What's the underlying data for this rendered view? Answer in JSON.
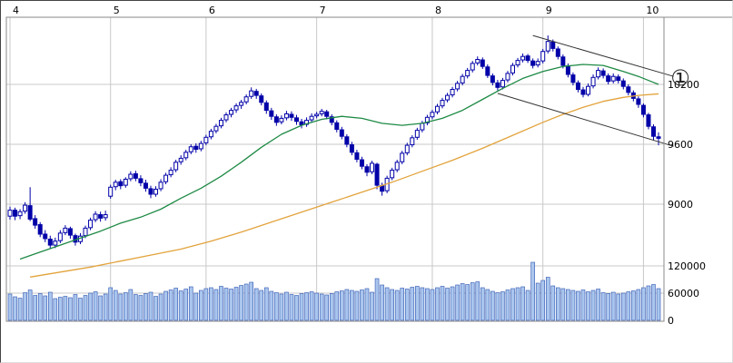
{
  "chart_data": {
    "type": "candlestick",
    "title": "",
    "description": "Daily candlestick stock chart, April through October, with short and long moving averages, descending trend channel and volume bars",
    "x_axis": {
      "unit": "month",
      "tick_labels": [
        "4",
        "5",
        "6",
        "7",
        "8",
        "9",
        "10"
      ],
      "tick_start_indices": [
        0,
        20,
        39,
        61,
        84,
        106,
        126
      ]
    },
    "price_axis": {
      "side": "right",
      "tick_labels": [
        "10200",
        "9600",
        "9000"
      ],
      "tick_values": [
        10200,
        9600,
        9000
      ]
    },
    "volume_axis": {
      "side": "right",
      "tick_labels": [
        "120000",
        "60000",
        "0"
      ],
      "tick_values": [
        120000,
        60000,
        0
      ]
    },
    "candles_ohlcv": [
      [
        8880,
        8975,
        8845,
        8940,
        58000
      ],
      [
        8940,
        8965,
        8840,
        8880,
        52000
      ],
      [
        8885,
        8950,
        8850,
        8925,
        49000
      ],
      [
        8930,
        9020,
        8905,
        8990,
        61000
      ],
      [
        8985,
        9170,
        8830,
        8850,
        67000
      ],
      [
        8855,
        8890,
        8755,
        8790,
        55000
      ],
      [
        8795,
        8820,
        8670,
        8700,
        59000
      ],
      [
        8700,
        8740,
        8620,
        8655,
        54000
      ],
      [
        8650,
        8685,
        8555,
        8590,
        62000
      ],
      [
        8590,
        8665,
        8560,
        8630,
        48000
      ],
      [
        8635,
        8740,
        8610,
        8710,
        51000
      ],
      [
        8715,
        8790,
        8690,
        8760,
        53000
      ],
      [
        8755,
        8775,
        8655,
        8690,
        50000
      ],
      [
        8685,
        8705,
        8585,
        8620,
        57000
      ],
      [
        8625,
        8710,
        8600,
        8680,
        49000
      ],
      [
        8685,
        8785,
        8660,
        8760,
        55000
      ],
      [
        8765,
        8865,
        8740,
        8840,
        60000
      ],
      [
        8845,
        8930,
        8820,
        8900,
        63000
      ],
      [
        8895,
        8925,
        8825,
        8860,
        54000
      ],
      [
        8865,
        8935,
        8835,
        8895,
        58000
      ],
      [
        9080,
        9195,
        9055,
        9170,
        72000
      ],
      [
        9175,
        9245,
        9140,
        9220,
        66000
      ],
      [
        9225,
        9250,
        9150,
        9185,
        58000
      ],
      [
        9190,
        9270,
        9165,
        9250,
        61000
      ],
      [
        9255,
        9330,
        9230,
        9300,
        68000
      ],
      [
        9305,
        9335,
        9230,
        9260,
        57000
      ],
      [
        9255,
        9290,
        9180,
        9215,
        55000
      ],
      [
        9210,
        9245,
        9125,
        9160,
        59000
      ],
      [
        9155,
        9185,
        9060,
        9100,
        62000
      ],
      [
        9100,
        9180,
        9075,
        9150,
        53000
      ],
      [
        9155,
        9250,
        9130,
        9220,
        58000
      ],
      [
        9225,
        9315,
        9200,
        9290,
        64000
      ],
      [
        9295,
        9370,
        9270,
        9340,
        67000
      ],
      [
        9345,
        9445,
        9320,
        9420,
        71000
      ],
      [
        9425,
        9490,
        9395,
        9460,
        65000
      ],
      [
        9465,
        9545,
        9440,
        9520,
        69000
      ],
      [
        9525,
        9600,
        9500,
        9575,
        74000
      ],
      [
        9580,
        9610,
        9515,
        9550,
        60000
      ],
      [
        9555,
        9635,
        9530,
        9608,
        66000
      ],
      [
        9615,
        9695,
        9590,
        9670,
        70000
      ],
      [
        9675,
        9755,
        9650,
        9730,
        72000
      ],
      [
        9735,
        9805,
        9710,
        9780,
        68000
      ],
      [
        9785,
        9865,
        9760,
        9840,
        75000
      ],
      [
        9845,
        9920,
        9820,
        9895,
        71000
      ],
      [
        9900,
        9965,
        9870,
        9940,
        69000
      ],
      [
        9945,
        10010,
        9915,
        9985,
        73000
      ],
      [
        9990,
        10045,
        9955,
        10020,
        77000
      ],
      [
        10025,
        10100,
        10000,
        10075,
        80000
      ],
      [
        10080,
        10170,
        10055,
        10135,
        84000
      ],
      [
        10130,
        10155,
        10055,
        10090,
        70000
      ],
      [
        10085,
        10110,
        9990,
        10020,
        66000
      ],
      [
        10015,
        10040,
        9905,
        9940,
        72000
      ],
      [
        9935,
        9965,
        9845,
        9880,
        64000
      ],
      [
        9875,
        9900,
        9785,
        9820,
        61000
      ],
      [
        9825,
        9890,
        9800,
        9860,
        58000
      ],
      [
        9865,
        9935,
        9840,
        9905,
        62000
      ],
      [
        9900,
        9930,
        9835,
        9870,
        57000
      ],
      [
        9865,
        9895,
        9795,
        9830,
        55000
      ],
      [
        9825,
        9855,
        9760,
        9795,
        59000
      ],
      [
        9800,
        9870,
        9775,
        9840,
        61000
      ],
      [
        9845,
        9910,
        9820,
        9880,
        63000
      ],
      [
        9885,
        9925,
        9860,
        9900,
        60000
      ],
      [
        9905,
        9955,
        9880,
        9930,
        58000
      ],
      [
        9925,
        9945,
        9850,
        9880,
        56000
      ],
      [
        9875,
        9900,
        9790,
        9820,
        59000
      ],
      [
        9815,
        9840,
        9720,
        9750,
        63000
      ],
      [
        9745,
        9775,
        9650,
        9680,
        65000
      ],
      [
        9675,
        9700,
        9570,
        9600,
        68000
      ],
      [
        9595,
        9625,
        9490,
        9520,
        66000
      ],
      [
        9515,
        9545,
        9420,
        9450,
        64000
      ],
      [
        9445,
        9475,
        9350,
        9380,
        67000
      ],
      [
        9375,
        9400,
        9280,
        9320,
        70000
      ],
      [
        9325,
        9435,
        9300,
        9410,
        62000
      ],
      [
        9400,
        9415,
        9150,
        9190,
        92000
      ],
      [
        9185,
        9215,
        9085,
        9130,
        78000
      ],
      [
        9135,
        9285,
        9110,
        9260,
        72000
      ],
      [
        9265,
        9365,
        9240,
        9340,
        68000
      ],
      [
        9345,
        9445,
        9320,
        9420,
        66000
      ],
      [
        9425,
        9535,
        9400,
        9510,
        71000
      ],
      [
        9515,
        9615,
        9490,
        9590,
        69000
      ],
      [
        9595,
        9690,
        9570,
        9665,
        73000
      ],
      [
        9670,
        9765,
        9645,
        9740,
        75000
      ],
      [
        9745,
        9835,
        9720,
        9810,
        72000
      ],
      [
        9815,
        9895,
        9790,
        9870,
        70000
      ],
      [
        9875,
        9945,
        9850,
        9920,
        68000
      ],
      [
        9925,
        10005,
        9900,
        9980,
        72000
      ],
      [
        9985,
        10065,
        9960,
        10040,
        75000
      ],
      [
        10045,
        10115,
        10020,
        10090,
        71000
      ],
      [
        10095,
        10175,
        10070,
        10150,
        74000
      ],
      [
        10155,
        10235,
        10130,
        10210,
        78000
      ],
      [
        10215,
        10305,
        10190,
        10280,
        81000
      ],
      [
        10285,
        10365,
        10260,
        10340,
        79000
      ],
      [
        10345,
        10435,
        10320,
        10410,
        83000
      ],
      [
        10415,
        10480,
        10390,
        10450,
        85000
      ],
      [
        10445,
        10470,
        10355,
        10380,
        72000
      ],
      [
        10375,
        10400,
        10265,
        10290,
        68000
      ],
      [
        10285,
        10310,
        10190,
        10220,
        64000
      ],
      [
        10215,
        10245,
        10140,
        10170,
        61000
      ],
      [
        10175,
        10265,
        10150,
        10240,
        63000
      ],
      [
        10245,
        10335,
        10220,
        10310,
        67000
      ],
      [
        10315,
        10415,
        10290,
        10390,
        70000
      ],
      [
        10395,
        10465,
        10370,
        10440,
        72000
      ],
      [
        10445,
        10510,
        10420,
        10480,
        74000
      ],
      [
        10485,
        10505,
        10415,
        10440,
        66000
      ],
      [
        10435,
        10460,
        10360,
        10390,
        128000
      ],
      [
        10395,
        10460,
        10370,
        10430,
        82000
      ],
      [
        10435,
        10555,
        10410,
        10530,
        88000
      ],
      [
        10535,
        10690,
        10510,
        10630,
        95000
      ],
      [
        10625,
        10650,
        10530,
        10560,
        76000
      ],
      [
        10555,
        10580,
        10450,
        10480,
        72000
      ],
      [
        10475,
        10500,
        10360,
        10390,
        70000
      ],
      [
        10385,
        10410,
        10270,
        10300,
        68000
      ],
      [
        10295,
        10320,
        10190,
        10220,
        66000
      ],
      [
        10215,
        10240,
        10120,
        10150,
        64000
      ],
      [
        10145,
        10175,
        10070,
        10100,
        67000
      ],
      [
        10100,
        10210,
        10080,
        10180,
        63000
      ],
      [
        10185,
        10300,
        10160,
        10270,
        66000
      ],
      [
        10275,
        10370,
        10250,
        10340,
        69000
      ],
      [
        10335,
        10360,
        10260,
        10290,
        61000
      ],
      [
        10285,
        10310,
        10200,
        10230,
        59000
      ],
      [
        10235,
        10310,
        10210,
        10280,
        62000
      ],
      [
        10275,
        10300,
        10210,
        10240,
        58000
      ],
      [
        10235,
        10260,
        10150,
        10180,
        60000
      ],
      [
        10175,
        10200,
        10090,
        10120,
        63000
      ],
      [
        10115,
        10140,
        10030,
        10060,
        65000
      ],
      [
        10055,
        10080,
        9965,
        10000,
        68000
      ],
      [
        9990,
        10010,
        9870,
        9900,
        72000
      ],
      [
        9895,
        9915,
        9750,
        9780,
        76000
      ],
      [
        9775,
        9800,
        9640,
        9680,
        79000
      ],
      [
        9675,
        9720,
        9590,
        9660,
        70000
      ]
    ],
    "overlays": [
      {
        "name": "ma-short",
        "color": "#1e8a45",
        "points": [
          [
            2,
            8450
          ],
          [
            6,
            8520
          ],
          [
            10,
            8590
          ],
          [
            14,
            8660
          ],
          [
            18,
            8730
          ],
          [
            22,
            8810
          ],
          [
            26,
            8870
          ],
          [
            30,
            8950
          ],
          [
            34,
            9060
          ],
          [
            38,
            9160
          ],
          [
            42,
            9280
          ],
          [
            46,
            9420
          ],
          [
            50,
            9570
          ],
          [
            54,
            9700
          ],
          [
            58,
            9790
          ],
          [
            62,
            9850
          ],
          [
            66,
            9880
          ],
          [
            70,
            9860
          ],
          [
            74,
            9810
          ],
          [
            78,
            9790
          ],
          [
            82,
            9810
          ],
          [
            86,
            9860
          ],
          [
            90,
            9940
          ],
          [
            94,
            10050
          ],
          [
            98,
            10160
          ],
          [
            102,
            10260
          ],
          [
            106,
            10330
          ],
          [
            110,
            10380
          ],
          [
            114,
            10400
          ],
          [
            118,
            10390
          ],
          [
            122,
            10330
          ],
          [
            125,
            10280
          ],
          [
            128,
            10220
          ],
          [
            129,
            10200
          ]
        ]
      },
      {
        "name": "ma-long",
        "color": "#e2a33c",
        "points": [
          [
            4,
            8270
          ],
          [
            10,
            8320
          ],
          [
            16,
            8370
          ],
          [
            22,
            8430
          ],
          [
            28,
            8490
          ],
          [
            34,
            8550
          ],
          [
            40,
            8630
          ],
          [
            46,
            8720
          ],
          [
            52,
            8820
          ],
          [
            58,
            8920
          ],
          [
            64,
            9020
          ],
          [
            70,
            9120
          ],
          [
            76,
            9220
          ],
          [
            82,
            9330
          ],
          [
            88,
            9440
          ],
          [
            94,
            9560
          ],
          [
            100,
            9690
          ],
          [
            106,
            9820
          ],
          [
            110,
            9900
          ],
          [
            114,
            9970
          ],
          [
            118,
            10030
          ],
          [
            122,
            10070
          ],
          [
            125,
            10090
          ],
          [
            129,
            10105
          ]
        ]
      }
    ],
    "trendlines": [
      {
        "from_index": 104,
        "from_price": 10690,
        "to_index": 132,
        "to_price": 10280
      },
      {
        "from_index": 97,
        "from_price": 10110,
        "to_index": 132,
        "to_price": 9580
      }
    ],
    "annotation": {
      "label": "①"
    },
    "colors": {
      "candle_up_fill": "#ffffff",
      "candle_down_fill": "#0000a8",
      "candle_stroke": "#0000a8",
      "wick": "#0000a8",
      "volume_fill": "#aac6ee",
      "volume_stroke": "#2f55b0",
      "grid": "#c8c8c8",
      "frame": "#888888",
      "trendline": "#333333",
      "label": "#000000"
    },
    "layout_hints": {
      "grid": true,
      "legend": false,
      "volume_pane": "bottom",
      "price_labels_side": "right"
    }
  }
}
